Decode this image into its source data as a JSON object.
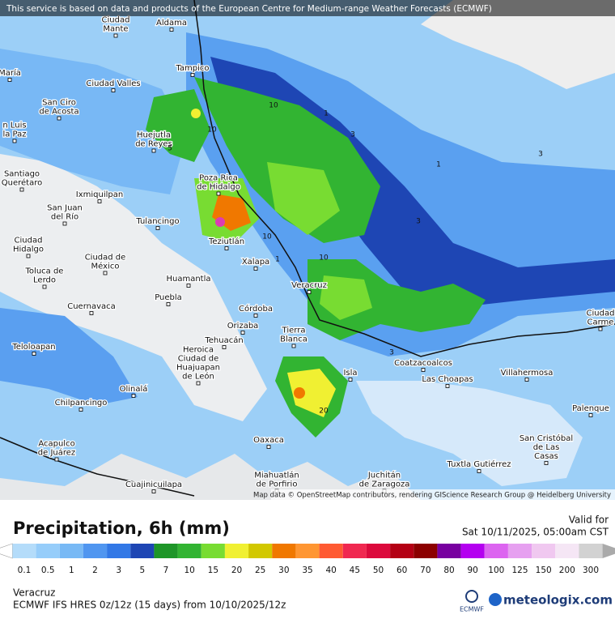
{
  "header": {
    "banner": "This service is based on data and products of the European Centre for Medium-range Weather Forecasts (ECMWF)"
  },
  "map": {
    "cities": [
      {
        "label": [
          "Aldama"
        ]
      },
      {
        "label": [
          "Ciudad",
          "Mante"
        ]
      },
      {
        "label": [
          "Tampico"
        ]
      },
      {
        "label": [
          "María"
        ]
      },
      {
        "label": [
          "Ciudad Valles"
        ]
      },
      {
        "label": [
          "San Ciro",
          "de Acosta"
        ]
      },
      {
        "label": [
          "n Luis",
          "la Paz"
        ]
      },
      {
        "label": [
          "Huejutla",
          "de Reyes"
        ]
      },
      {
        "label": [
          "Santiago",
          "Querétaro"
        ]
      },
      {
        "label": [
          "Ixmiquilpan"
        ]
      },
      {
        "label": [
          "Poza Rica",
          "de Hidalgo"
        ]
      },
      {
        "label": [
          "San Juan",
          "del Río"
        ]
      },
      {
        "label": [
          "Tulancingo"
        ]
      },
      {
        "label": [
          "Teziutlán"
        ]
      },
      {
        "label": [
          "Ciudad",
          "Hidalgo"
        ]
      },
      {
        "label": [
          "Xalapa"
        ]
      },
      {
        "label": [
          "Ciudad de",
          "México"
        ]
      },
      {
        "label": [
          "Toluca de",
          "Lerdo"
        ]
      },
      {
        "label": [
          "Huamantla"
        ]
      },
      {
        "label": [
          "Veracruz"
        ]
      },
      {
        "label": [
          "Puebla"
        ]
      },
      {
        "label": [
          "Cuernavaca"
        ]
      },
      {
        "label": [
          "Córdoba"
        ]
      },
      {
        "label": [
          "Orizaba"
        ]
      },
      {
        "label": [
          "Tehuacán"
        ]
      },
      {
        "label": [
          "Tierra",
          "Blanca"
        ]
      },
      {
        "label": [
          "Teloloapan"
        ]
      },
      {
        "label": [
          "Coatzacoalcos"
        ]
      },
      {
        "label": [
          "Heroica",
          "Ciudad de",
          "Huajuapan",
          "de León"
        ]
      },
      {
        "label": [
          "Isla"
        ]
      },
      {
        "label": [
          "Las Choapas"
        ]
      },
      {
        "label": [
          "Villahermosa"
        ]
      },
      {
        "label": [
          "Olinalá"
        ]
      },
      {
        "label": [
          "Chilpancingo"
        ]
      },
      {
        "label": [
          "Palenque"
        ]
      },
      {
        "label": [
          "Oaxaca"
        ]
      },
      {
        "label": [
          "Acapulco",
          "de Juárez"
        ]
      },
      {
        "label": [
          "San Cristóbal",
          "de Las",
          "Casas"
        ]
      },
      {
        "label": [
          "Tuxtla Gutiérrez"
        ]
      },
      {
        "label": [
          "Miahuatlán",
          "de Porfirio"
        ]
      },
      {
        "label": [
          "Juchitán",
          "de Zaragoza"
        ]
      },
      {
        "label": [
          "Cuajinicuilapa"
        ]
      },
      {
        "label": [
          "Ciudad",
          "Carme"
        ]
      }
    ],
    "contour_labels": [
      "10",
      "1",
      "3",
      "10",
      "1",
      "3",
      "3",
      "10",
      "10",
      "3",
      "1",
      "20",
      "5"
    ],
    "attribution": "Map data © OpenStreetMap contributors, rendering GIScience Research Group @ Heidelberg University"
  },
  "footer": {
    "title": "Precipitation, 6h (mm)",
    "valid_label": "Valid for",
    "valid_time": "Sat 10/11/2025, 05:00am CST",
    "region": "Veracruz",
    "model": "ECMWF IFS HRES 0z/12z (15 days) from 10/10/2025/12z",
    "ecmwf_logo": "ECMWF",
    "brand": "meteologix.com"
  },
  "legend": {
    "levels": [
      0.1,
      0.5,
      1,
      2,
      3,
      5,
      7,
      10,
      15,
      20,
      25,
      30,
      35,
      40,
      45,
      50,
      60,
      70,
      80,
      90,
      100,
      125,
      150,
      200,
      300
    ],
    "colors": [
      "#b4dcfa",
      "#96cdfa",
      "#78b9f5",
      "#5096f0",
      "#3278e6",
      "#1e46b4",
      "#1e9628",
      "#32b432",
      "#78dc32",
      "#f0f032",
      "#d2c800",
      "#f07800",
      "#ff9632",
      "#ff5a32",
      "#f02850",
      "#dc0a3c",
      "#b40014",
      "#8c0000",
      "#7800a0",
      "#b400f0",
      "#dc64f0",
      "#e6a0f0",
      "#f0c8f0",
      "#f5e6f5",
      "#d2d2d2"
    ],
    "below_color": "#ffffff",
    "above_color": "#aaaaaa"
  }
}
